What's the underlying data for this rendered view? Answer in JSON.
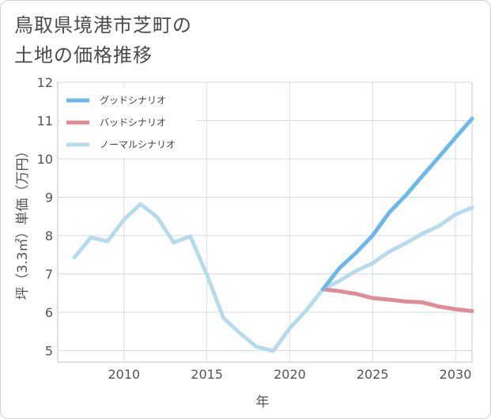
{
  "title_lines": [
    "鳥取県境港市芝町の",
    "土地の価格推移"
  ],
  "chart_data": {
    "type": "line",
    "title": "鳥取県境港市芝町の土地の価格推移",
    "xlabel": "年",
    "ylabel": "坪（3.3㎡）単価（万円）",
    "xlim": [
      2006,
      2031
    ],
    "ylim": [
      4.7,
      12
    ],
    "xticks": [
      2010,
      2015,
      2020,
      2025,
      2030
    ],
    "yticks": [
      5,
      6,
      7,
      8,
      9,
      10,
      11,
      12
    ],
    "grid": true,
    "legend_position": "top-left",
    "series": [
      {
        "name": "グッドシナリオ",
        "color": "#6cb8ea",
        "x": [
          2022,
          2023,
          2024,
          2025,
          2026,
          2027,
          2028,
          2029,
          2030,
          2031
        ],
        "y": [
          6.6,
          7.15,
          7.55,
          8.0,
          8.6,
          9.05,
          9.55,
          10.05,
          10.55,
          11.05
        ]
      },
      {
        "name": "バッドシナリオ",
        "color": "#df8c94",
        "x": [
          2022,
          2023,
          2024,
          2025,
          2026,
          2027,
          2028,
          2029,
          2030,
          2031
        ],
        "y": [
          6.6,
          6.55,
          6.48,
          6.37,
          6.33,
          6.28,
          6.26,
          6.15,
          6.08,
          6.03
        ]
      },
      {
        "name": "ノーマルシナリオ",
        "color": "#b6dcec",
        "x": [
          2007,
          2008,
          2009,
          2010,
          2011,
          2012,
          2013,
          2014,
          2015,
          2016,
          2017,
          2018,
          2019,
          2020,
          2021,
          2022,
          2023,
          2024,
          2025,
          2026,
          2027,
          2028,
          2029,
          2030,
          2031
        ],
        "y": [
          7.43,
          7.95,
          7.85,
          8.42,
          8.82,
          8.48,
          7.82,
          7.98,
          6.98,
          5.85,
          5.45,
          5.1,
          4.99,
          5.58,
          6.05,
          6.6,
          6.82,
          7.08,
          7.28,
          7.58,
          7.8,
          8.05,
          8.25,
          8.55,
          8.73
        ]
      }
    ]
  }
}
